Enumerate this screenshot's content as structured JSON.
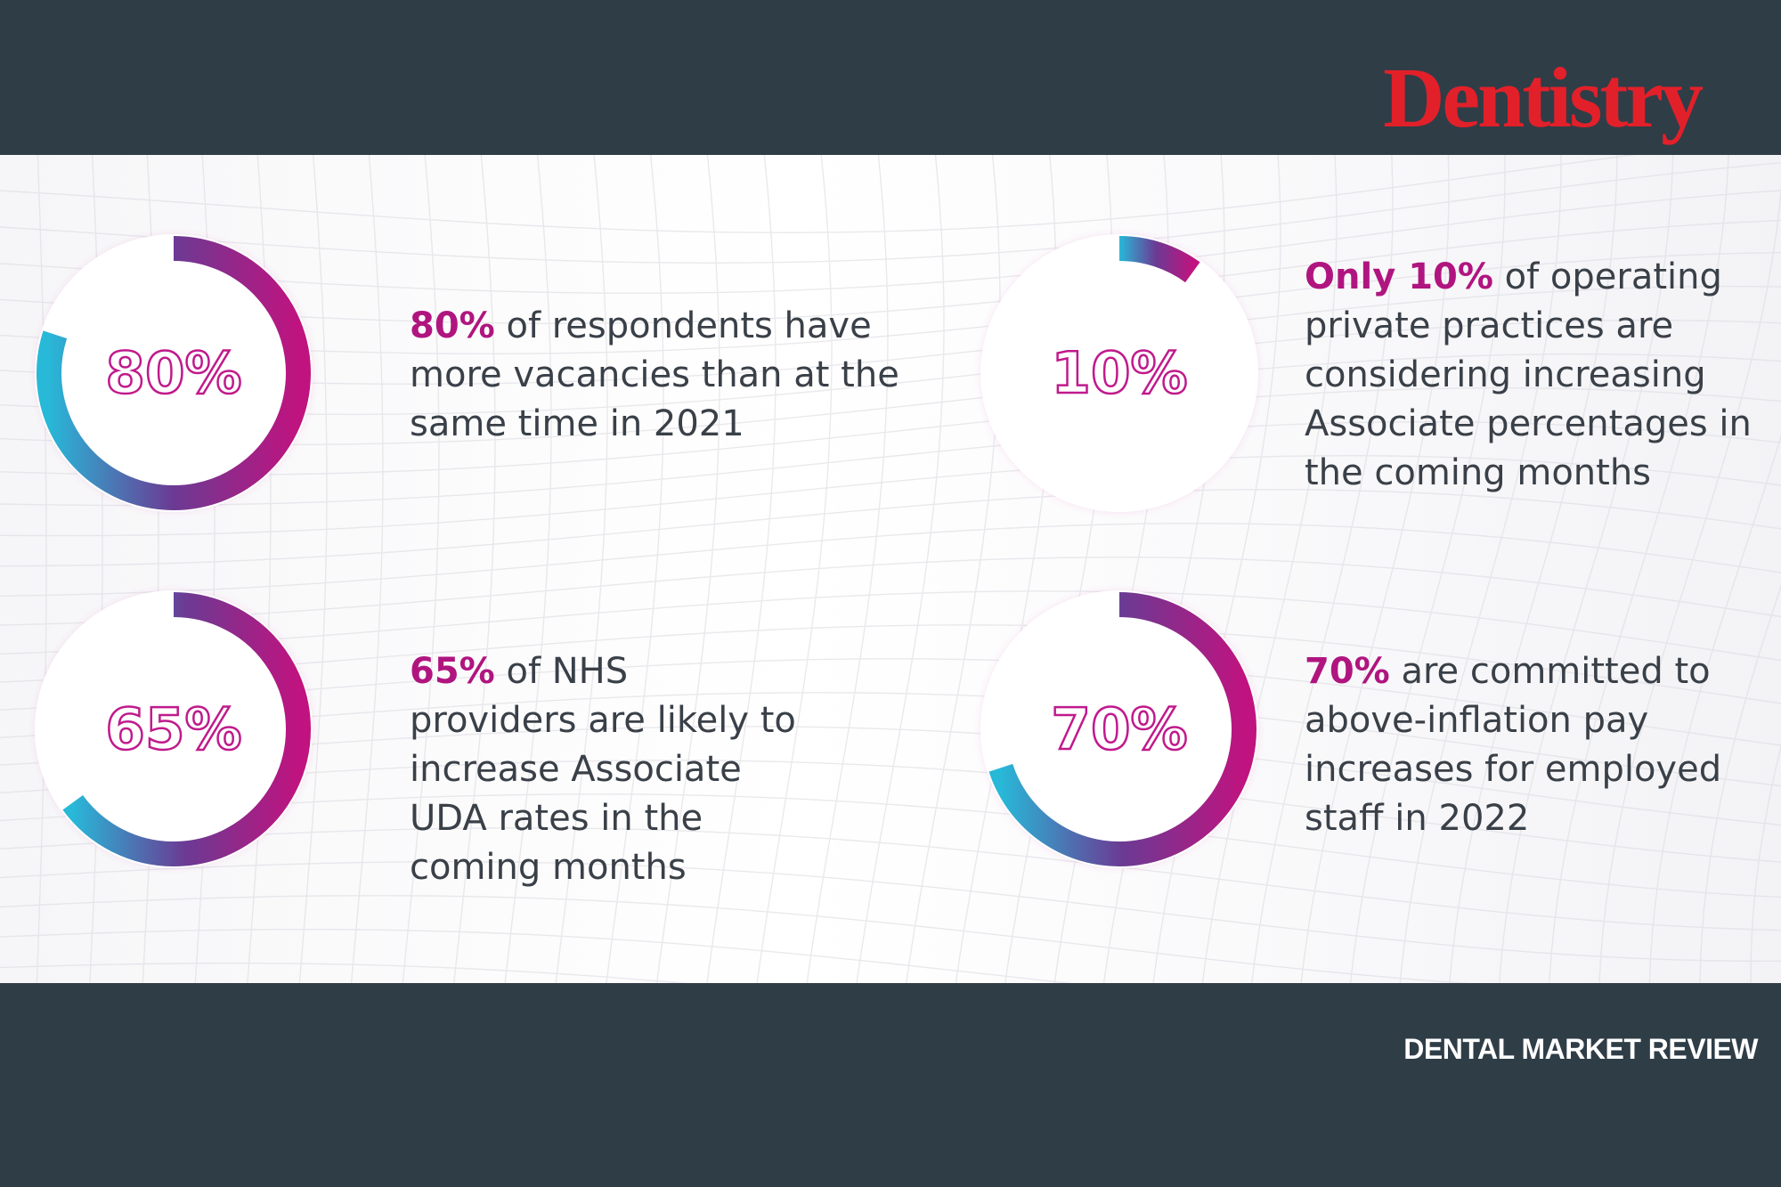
{
  "header": {
    "brand": "Dentistry"
  },
  "footer": {
    "label": "DENTAL MARKET REVIEW"
  },
  "colors": {
    "gradient_start": "#28b8d8",
    "gradient_mid": "#6b3a93",
    "gradient_end": "#c0137f",
    "highlight": "#b0157f",
    "percent_outline": "#c01a8c"
  },
  "chart_data": [
    {
      "type": "donut",
      "value": 80,
      "label": "80%",
      "highlight": "80%",
      "rest": " of respondents have more vacancies than at the same time in 2021"
    },
    {
      "type": "donut",
      "value": 10,
      "label": "10%",
      "highlight": "Only 10%",
      "rest": " of operating private practices are considering increasing Associate percentages in the coming months"
    },
    {
      "type": "donut",
      "value": 65,
      "label": "65%",
      "highlight": "65%",
      "rest": " of NHS providers are likely to increase Associate UDA rates in the coming months"
    },
    {
      "type": "donut",
      "value": 70,
      "label": "70%",
      "highlight": "70%",
      "rest": " are committed to above-inflation pay increases for employed staff in 2022"
    }
  ]
}
